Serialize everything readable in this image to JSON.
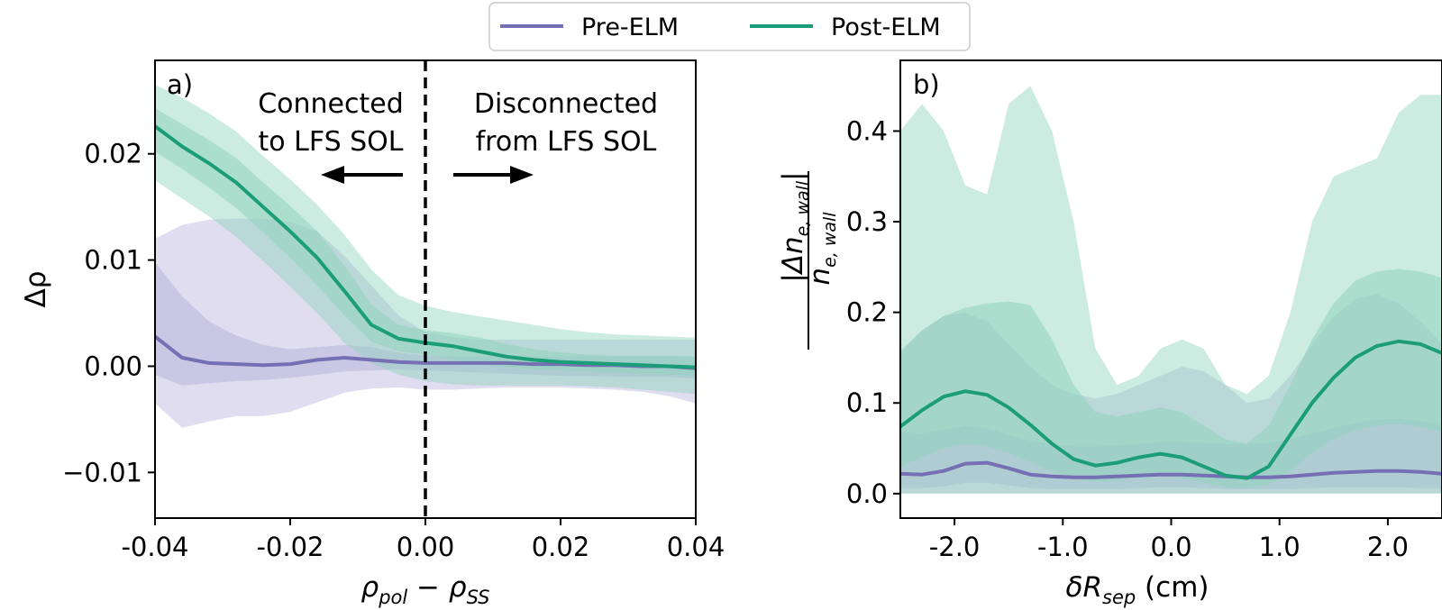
{
  "colors": {
    "pre": "#7570b3",
    "post": "#1b9e77",
    "pre_band": "#b8b4dc",
    "post_band": "#8fd3bd"
  },
  "legend": {
    "placement": "top-center",
    "items": [
      {
        "label": "Pre-ELM",
        "color": "#7570b3"
      },
      {
        "label": "Post-ELM",
        "color": "#1b9e77"
      }
    ]
  },
  "chart_data": [
    {
      "type": "line",
      "panel_label": "a)",
      "xlabel_parts": {
        "main": "ρ",
        "sub": "pol",
        "mid": " − ρ",
        "sub2": "SS"
      },
      "ylabel": "Δρ",
      "xlim": [
        -0.04,
        0.04
      ],
      "ylim": [
        -0.0143,
        0.0288
      ],
      "xticks": [
        -0.04,
        -0.02,
        0.0,
        0.02,
        0.04
      ],
      "xtick_labels": [
        "-0.04",
        "-0.02",
        "0.00",
        "0.02",
        "0.04"
      ],
      "yticks": [
        -0.01,
        0.0,
        0.01,
        0.02
      ],
      "ytick_labels": [
        "−0.01",
        "0.00",
        "0.01",
        "0.02"
      ],
      "vline": 0.0,
      "annotations": {
        "left": {
          "lines": [
            "Connected",
            "to LFS SOL"
          ],
          "arrow": "left"
        },
        "right": {
          "lines": [
            "Disconnected",
            "from LFS SOL"
          ],
          "arrow": "right"
        }
      },
      "x": [
        -0.04,
        -0.036,
        -0.032,
        -0.028,
        -0.024,
        -0.02,
        -0.016,
        -0.012,
        -0.008,
        -0.004,
        0.0,
        0.004,
        0.008,
        0.012,
        0.016,
        0.02,
        0.024,
        0.028,
        0.032,
        0.036,
        0.04
      ],
      "series": [
        {
          "name": "Pre-ELM",
          "values": [
            0.0028,
            0.0008,
            0.0003,
            0.0002,
            0.0001,
            0.0002,
            0.0006,
            0.0008,
            0.0006,
            0.0004,
            0.0003,
            0.0003,
            0.0003,
            0.0003,
            0.0002,
            0.0002,
            0.0001,
            0.0001,
            0.0,
            0.0,
            -0.0002
          ],
          "inner_low": [
            -0.0008,
            -0.0018,
            -0.0016,
            -0.0014,
            -0.0013,
            -0.0011,
            -0.0008,
            -0.0005,
            -0.0004,
            -0.0003,
            -0.0004,
            -0.0005,
            -0.0006,
            -0.0007,
            -0.0008,
            -0.0009,
            -0.0009,
            -0.001,
            -0.001,
            -0.001,
            -0.0012
          ],
          "inner_high": [
            0.0098,
            0.0066,
            0.0042,
            0.0029,
            0.002,
            0.0016,
            0.0018,
            0.002,
            0.0018,
            0.0013,
            0.001,
            0.0009,
            0.0009,
            0.0009,
            0.0009,
            0.0009,
            0.0009,
            0.0009,
            0.0009,
            0.0009,
            0.0009
          ],
          "outer_low": [
            -0.0035,
            -0.0058,
            -0.0052,
            -0.0047,
            -0.0047,
            -0.0043,
            -0.0034,
            -0.0025,
            -0.0021,
            -0.002,
            -0.0022,
            -0.0022,
            -0.0021,
            -0.002,
            -0.002,
            -0.002,
            -0.0021,
            -0.0022,
            -0.0024,
            -0.0028,
            -0.0035
          ],
          "outer_high": [
            0.012,
            0.0133,
            0.0138,
            0.0139,
            0.0139,
            0.0136,
            0.0127,
            0.0104,
            0.0076,
            0.0048,
            0.0032,
            0.0027,
            0.0025,
            0.0025,
            0.0025,
            0.0025,
            0.0025,
            0.0025,
            0.0025,
            0.0025,
            0.0025
          ]
        },
        {
          "name": "Post-ELM",
          "values": [
            0.0226,
            0.0207,
            0.0191,
            0.0173,
            0.015,
            0.0127,
            0.0102,
            0.0071,
            0.0039,
            0.0026,
            0.0022,
            0.0019,
            0.0014,
            0.0009,
            0.0006,
            0.0004,
            0.0003,
            0.0002,
            0.0001,
            0.0,
            -0.0001
          ],
          "inner_low": [
            0.0202,
            0.0186,
            0.0168,
            0.0149,
            0.0126,
            0.0102,
            0.0076,
            0.0048,
            0.0023,
            0.0014,
            0.0011,
            0.0006,
            0.0002,
            -0.0001,
            -0.0003,
            -0.0004,
            -0.0005,
            -0.0006,
            -0.0007,
            -0.0008,
            -0.0009
          ],
          "inner_high": [
            0.0243,
            0.0228,
            0.0213,
            0.0196,
            0.0173,
            0.0151,
            0.0127,
            0.0095,
            0.0058,
            0.0039,
            0.0034,
            0.0031,
            0.0027,
            0.0021,
            0.0016,
            0.0013,
            0.0011,
            0.001,
            0.001,
            0.001,
            0.0009
          ],
          "outer_low": [
            0.0175,
            0.0158,
            0.0141,
            0.0122,
            0.0099,
            0.0075,
            0.005,
            0.0022,
            0.0003,
            -0.0008,
            -0.0014,
            -0.0017,
            -0.0018,
            -0.0018,
            -0.0018,
            -0.0018,
            -0.0019,
            -0.002,
            -0.0022,
            -0.0024,
            -0.0026
          ],
          "outer_high": [
            0.0265,
            0.0253,
            0.0238,
            0.0221,
            0.0198,
            0.0176,
            0.0152,
            0.0124,
            0.0091,
            0.0067,
            0.0057,
            0.0051,
            0.0047,
            0.0043,
            0.0039,
            0.0035,
            0.0032,
            0.003,
            0.0029,
            0.0028,
            0.0027
          ]
        }
      ]
    },
    {
      "type": "line",
      "panel_label": "b)",
      "xlabel_parts": {
        "main": "δR",
        "sub": "sep",
        "tail": " (cm)"
      },
      "ylabel_parts": {
        "num_prefix": "|Δn",
        "num_sub": "e, wall",
        "num_suffix": "|",
        "den": "n",
        "den_sub": "e, wall"
      },
      "xlim": [
        -2.5,
        2.5
      ],
      "ylim": [
        -0.027,
        0.478
      ],
      "xticks": [
        -2.0,
        -1.0,
        0.0,
        1.0,
        2.0
      ],
      "xtick_labels": [
        "-2.0",
        "-1.0",
        "0.0",
        "1.0",
        "2.0"
      ],
      "yticks": [
        0.0,
        0.1,
        0.2,
        0.3,
        0.4
      ],
      "ytick_labels": [
        "0.0",
        "0.1",
        "0.2",
        "0.3",
        "0.4"
      ],
      "x": [
        -2.5,
        -2.3,
        -2.1,
        -1.9,
        -1.7,
        -1.5,
        -1.3,
        -1.1,
        -0.9,
        -0.7,
        -0.5,
        -0.3,
        -0.1,
        0.1,
        0.3,
        0.5,
        0.7,
        0.9,
        1.1,
        1.3,
        1.5,
        1.7,
        1.9,
        2.1,
        2.3,
        2.5
      ],
      "series": [
        {
          "name": "Pre-ELM",
          "values": [
            0.022,
            0.021,
            0.025,
            0.033,
            0.034,
            0.028,
            0.021,
            0.019,
            0.018,
            0.018,
            0.019,
            0.02,
            0.021,
            0.021,
            0.02,
            0.019,
            0.018,
            0.018,
            0.019,
            0.021,
            0.023,
            0.024,
            0.025,
            0.025,
            0.024,
            0.022
          ],
          "inner_low": [
            0.006,
            0.006,
            0.008,
            0.012,
            0.012,
            0.009,
            0.006,
            0.005,
            0.005,
            0.005,
            0.005,
            0.006,
            0.007,
            0.007,
            0.006,
            0.005,
            0.005,
            0.005,
            0.005,
            0.006,
            0.007,
            0.007,
            0.007,
            0.007,
            0.006,
            0.006
          ],
          "inner_high": [
            0.068,
            0.066,
            0.07,
            0.075,
            0.072,
            0.065,
            0.058,
            0.054,
            0.052,
            0.052,
            0.053,
            0.055,
            0.057,
            0.057,
            0.056,
            0.055,
            0.055,
            0.056,
            0.06,
            0.066,
            0.072,
            0.078,
            0.082,
            0.083,
            0.08,
            0.075
          ],
          "outer_low": [
            0.0,
            0.0,
            0.0,
            0.0,
            0.0,
            0.0,
            0.0,
            0.0,
            0.0,
            0.0,
            0.0,
            0.0,
            0.0,
            0.0,
            0.0,
            0.0,
            0.0,
            0.0,
            0.0,
            0.0,
            0.0,
            0.0,
            0.0,
            0.0,
            0.0,
            0.0
          ],
          "outer_high": [
            0.155,
            0.18,
            0.196,
            0.2,
            0.19,
            0.165,
            0.14,
            0.12,
            0.11,
            0.105,
            0.11,
            0.12,
            0.13,
            0.14,
            0.135,
            0.12,
            0.1,
            0.105,
            0.13,
            0.165,
            0.195,
            0.215,
            0.22,
            0.21,
            0.19,
            0.165
          ]
        },
        {
          "name": "Post-ELM",
          "values": [
            0.074,
            0.092,
            0.107,
            0.113,
            0.109,
            0.095,
            0.076,
            0.055,
            0.038,
            0.031,
            0.034,
            0.04,
            0.044,
            0.04,
            0.03,
            0.02,
            0.017,
            0.03,
            0.065,
            0.1,
            0.128,
            0.15,
            0.163,
            0.168,
            0.165,
            0.155
          ],
          "inner_low": [
            0.03,
            0.04,
            0.05,
            0.055,
            0.052,
            0.045,
            0.035,
            0.024,
            0.017,
            0.013,
            0.015,
            0.018,
            0.02,
            0.017,
            0.012,
            0.007,
            0.006,
            0.01,
            0.025,
            0.045,
            0.06,
            0.07,
            0.075,
            0.077,
            0.074,
            0.068
          ],
          "inner_high": [
            0.158,
            0.18,
            0.196,
            0.205,
            0.21,
            0.212,
            0.208,
            0.17,
            0.12,
            0.09,
            0.085,
            0.09,
            0.095,
            0.09,
            0.075,
            0.06,
            0.055,
            0.075,
            0.12,
            0.17,
            0.21,
            0.235,
            0.245,
            0.248,
            0.245,
            0.238
          ],
          "outer_low": [
            0.0,
            0.0,
            0.0,
            0.0,
            0.0,
            0.0,
            0.0,
            0.0,
            0.0,
            0.0,
            0.0,
            0.0,
            0.0,
            0.0,
            0.0,
            0.0,
            0.0,
            0.0,
            0.0,
            0.0,
            0.0,
            0.0,
            0.0,
            0.0,
            0.0,
            0.0
          ],
          "outer_high": [
            0.4,
            0.43,
            0.4,
            0.34,
            0.33,
            0.43,
            0.45,
            0.4,
            0.3,
            0.16,
            0.12,
            0.13,
            0.16,
            0.17,
            0.16,
            0.12,
            0.11,
            0.13,
            0.2,
            0.3,
            0.35,
            0.36,
            0.37,
            0.42,
            0.44,
            0.44
          ]
        }
      ]
    }
  ]
}
